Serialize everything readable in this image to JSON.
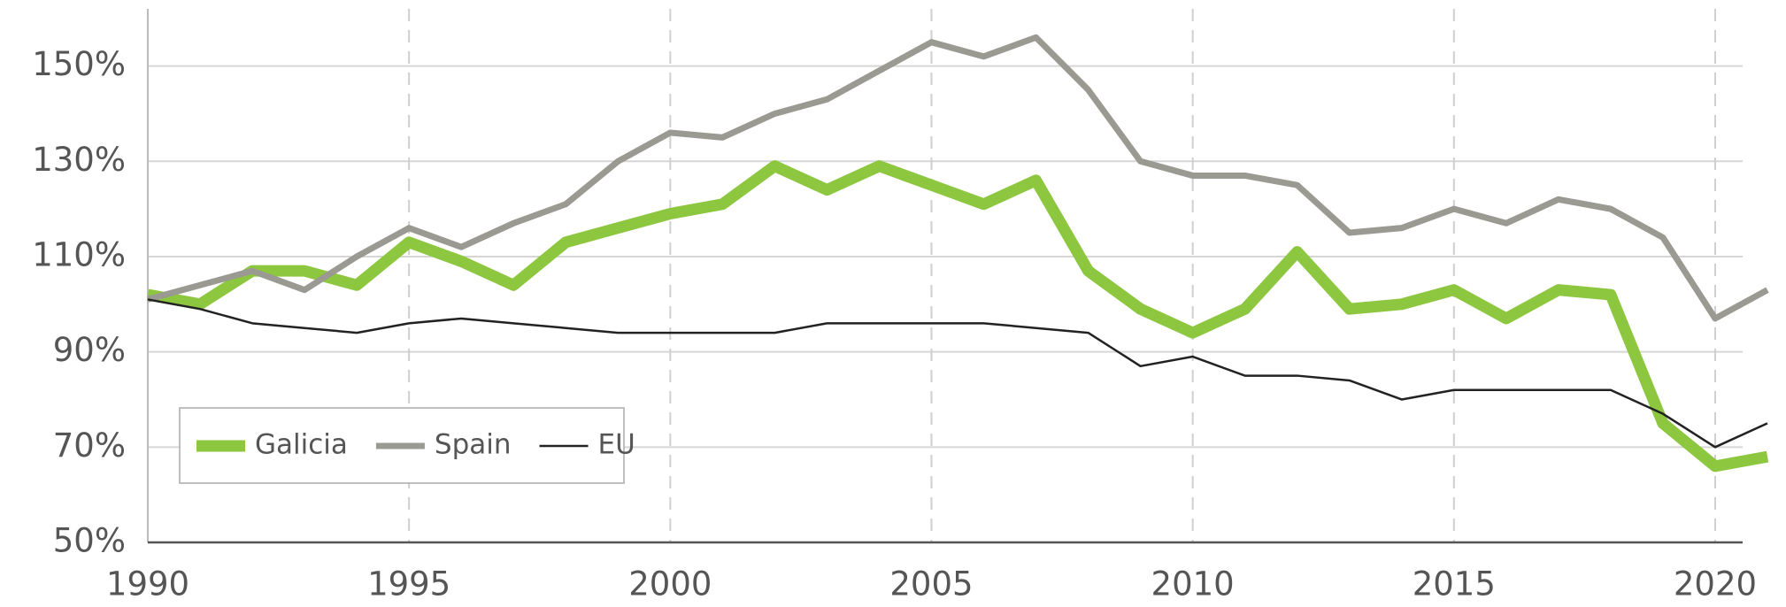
{
  "chart_data": {
    "type": "line",
    "x": [
      1990,
      1991,
      1992,
      1993,
      1994,
      1995,
      1996,
      1997,
      1998,
      1999,
      2000,
      2001,
      2002,
      2003,
      2004,
      2005,
      2006,
      2007,
      2008,
      2009,
      2010,
      2011,
      2012,
      2013,
      2014,
      2015,
      2016,
      2017,
      2018,
      2019,
      2020,
      2021
    ],
    "series": [
      {
        "name": "Galicia",
        "color": "#8dc63f",
        "values": [
          102,
          100,
          107,
          107,
          104,
          113,
          109,
          104,
          113,
          116,
          119,
          121,
          129,
          124,
          129,
          125,
          121,
          126,
          107,
          99,
          94,
          99,
          111,
          99,
          100,
          103,
          97,
          103,
          102,
          75,
          66,
          68
        ]
      },
      {
        "name": "Spain",
        "color": "#9a9992",
        "values": [
          101,
          104,
          107,
          103,
          110,
          116,
          112,
          117,
          121,
          130,
          136,
          135,
          140,
          143,
          149,
          155,
          152,
          156,
          145,
          130,
          127,
          127,
          125,
          115,
          116,
          120,
          117,
          122,
          120,
          114,
          97,
          103
        ]
      },
      {
        "name": "EU",
        "color": "#222222",
        "values": [
          101,
          99,
          96,
          95,
          94,
          96,
          97,
          96,
          95,
          94,
          94,
          94,
          94,
          96,
          96,
          96,
          96,
          95,
          94,
          87,
          89,
          85,
          85,
          84,
          80,
          82,
          82,
          82,
          82,
          77,
          70,
          75
        ]
      }
    ],
    "xlim": [
      1990,
      2021
    ],
    "xticks": [
      1990,
      1995,
      2000,
      2005,
      2010,
      2015,
      2020
    ],
    "ylim": [
      50,
      162
    ],
    "yticks": [
      {
        "value": 50,
        "label": "50%"
      },
      {
        "value": 70,
        "label": "70%"
      },
      {
        "value": 90,
        "label": "90%"
      },
      {
        "value": 110,
        "label": "110%"
      },
      {
        "value": 130,
        "label": "130%"
      },
      {
        "value": 150,
        "label": "150%"
      }
    ],
    "grid": true,
    "legend": "lower left"
  }
}
